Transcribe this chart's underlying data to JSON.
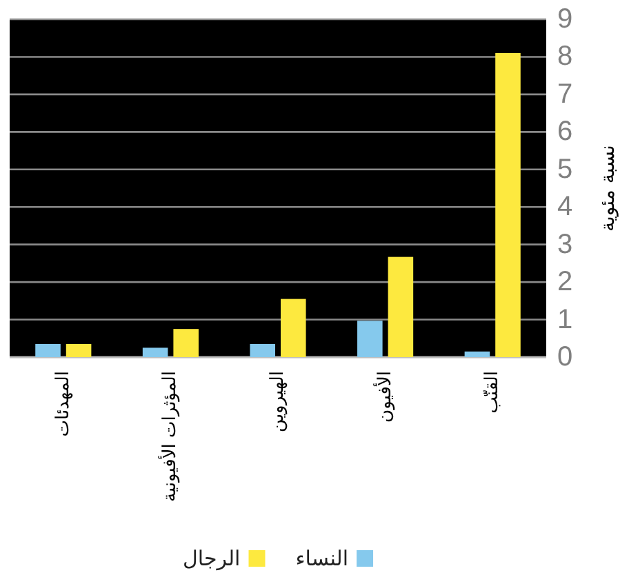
{
  "chart_data": {
    "type": "bar",
    "ylabel": "نسبة مئوية",
    "categories": [
      "المهدئات",
      "المؤثرات الأفيونية",
      "الهيروين",
      "الأفيون",
      "القنّب"
    ],
    "series": [
      {
        "name": "النساء",
        "color": "#85c9ed",
        "values": [
          0.35,
          0.25,
          0.35,
          0.97,
          0.15
        ]
      },
      {
        "name": "الرجال",
        "color": "#fde93f",
        "values": [
          0.35,
          0.75,
          1.55,
          2.67,
          8.1
        ]
      }
    ],
    "ylim": [
      0,
      9
    ],
    "yticks": [
      0,
      1,
      2,
      3,
      4,
      5,
      6,
      7,
      8,
      9
    ],
    "grid": "y",
    "legend": "bottom"
  }
}
